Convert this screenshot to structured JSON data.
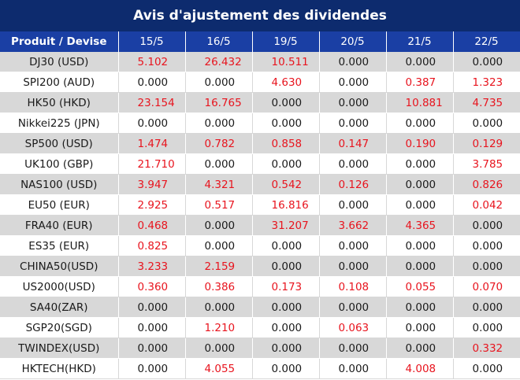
{
  "title": "Avis d'ajustement des dividendes",
  "colors": {
    "header_dark": "#0d2b6e",
    "header_blue": "#1a3fa4",
    "positive": "#e8141e",
    "zero": "#1a1a1a",
    "row_shade": "#d8d8d8"
  },
  "table": {
    "headers": [
      "Produit / Devise",
      "15/5",
      "16/5",
      "19/5",
      "20/5",
      "21/5",
      "22/5"
    ],
    "rows": [
      {
        "product": "DJ30 (USD)",
        "values": [
          "5.102",
          "26.432",
          "10.511",
          "0.000",
          "0.000",
          "0.000"
        ]
      },
      {
        "product": "SPI200 (AUD)",
        "values": [
          "0.000",
          "0.000",
          "4.630",
          "0.000",
          "0.387",
          "1.323"
        ]
      },
      {
        "product": "HK50 (HKD)",
        "values": [
          "23.154",
          "16.765",
          "0.000",
          "0.000",
          "10.881",
          "4.735"
        ]
      },
      {
        "product": "Nikkei225 (JPN)",
        "values": [
          "0.000",
          "0.000",
          "0.000",
          "0.000",
          "0.000",
          "0.000"
        ]
      },
      {
        "product": "SP500 (USD)",
        "values": [
          "1.474",
          "0.782",
          "0.858",
          "0.147",
          "0.190",
          "0.129"
        ]
      },
      {
        "product": "UK100 (GBP)",
        "values": [
          "21.710",
          "0.000",
          "0.000",
          "0.000",
          "0.000",
          "3.785"
        ]
      },
      {
        "product": "NAS100 (USD)",
        "values": [
          "3.947",
          "4.321",
          "0.542",
          "0.126",
          "0.000",
          "0.826"
        ]
      },
      {
        "product": "EU50 (EUR)",
        "values": [
          "2.925",
          "0.517",
          "16.816",
          "0.000",
          "0.000",
          "0.042"
        ]
      },
      {
        "product": "FRA40 (EUR)",
        "values": [
          "0.468",
          "0.000",
          "31.207",
          "3.662",
          "4.365",
          "0.000"
        ]
      },
      {
        "product": "ES35 (EUR)",
        "values": [
          "0.825",
          "0.000",
          "0.000",
          "0.000",
          "0.000",
          "0.000"
        ]
      },
      {
        "product": "CHINA50(USD)",
        "values": [
          "3.233",
          "2.159",
          "0.000",
          "0.000",
          "0.000",
          "0.000"
        ]
      },
      {
        "product": "US2000(USD)",
        "values": [
          "0.360",
          "0.386",
          "0.173",
          "0.108",
          "0.055",
          "0.070"
        ]
      },
      {
        "product": "SA40(ZAR)",
        "values": [
          "0.000",
          "0.000",
          "0.000",
          "0.000",
          "0.000",
          "0.000"
        ]
      },
      {
        "product": "SGP20(SGD)",
        "values": [
          "0.000",
          "1.210",
          "0.000",
          "0.063",
          "0.000",
          "0.000"
        ]
      },
      {
        "product": "TWINDEX(USD)",
        "values": [
          "0.000",
          "0.000",
          "0.000",
          "0.000",
          "0.000",
          "0.332"
        ]
      },
      {
        "product": "HKTECH(HKD)",
        "values": [
          "0.000",
          "4.055",
          "0.000",
          "0.000",
          "4.008",
          "0.000"
        ]
      }
    ]
  }
}
